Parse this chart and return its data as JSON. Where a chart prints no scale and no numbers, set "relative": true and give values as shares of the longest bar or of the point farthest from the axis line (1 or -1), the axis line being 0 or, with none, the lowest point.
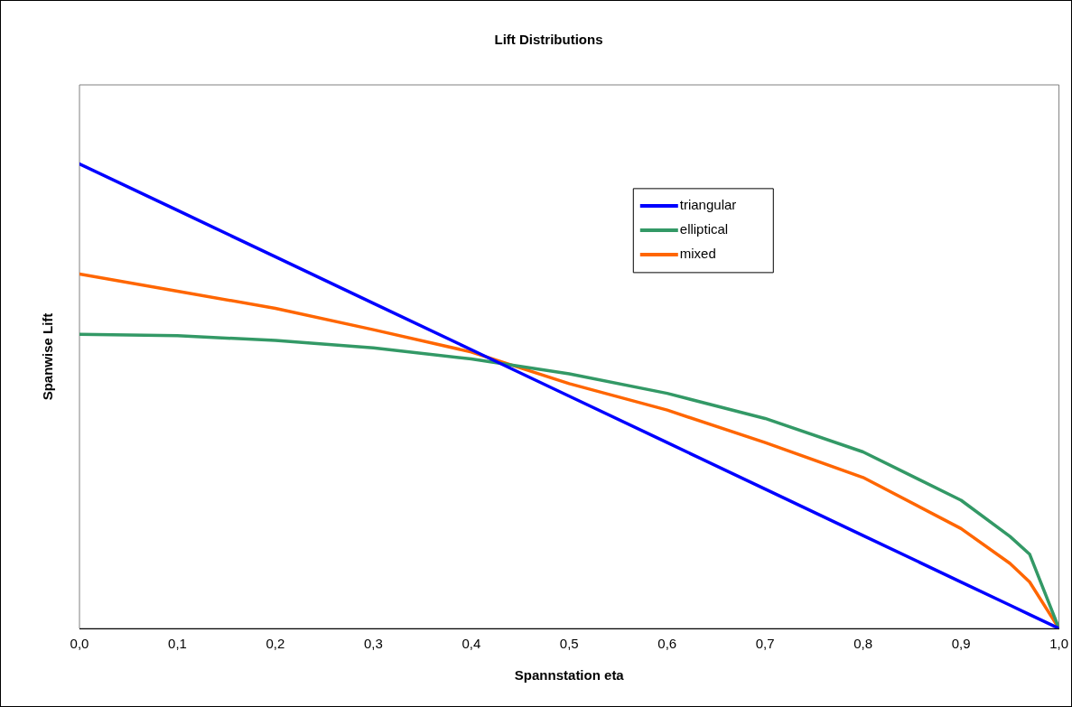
{
  "chart_data": {
    "type": "line",
    "title": "Lift Distributions",
    "xlabel": "Spannstation eta",
    "ylabel": "Spanwise Lift",
    "relative": true,
    "grid": false,
    "legend": "top right",
    "marker": "none",
    "line_style": "solid",
    "xlim": [
      0,
      1
    ],
    "xticks": [
      {
        "value": 0,
        "label": "0,0"
      },
      {
        "value": 0.1,
        "label": "0,1"
      },
      {
        "value": 0.2,
        "label": "0,2"
      },
      {
        "value": 0.3,
        "label": "0,3"
      },
      {
        "value": 0.4,
        "label": "0,4"
      },
      {
        "value": 0.5,
        "label": "0,5"
      },
      {
        "value": 0.6,
        "label": "0,6"
      },
      {
        "value": 0.7,
        "label": "0,7"
      },
      {
        "value": 0.8,
        "label": "0,8"
      },
      {
        "value": 0.9,
        "label": "0,9"
      },
      {
        "value": 1,
        "label": "1,0"
      }
    ],
    "x": [
      0,
      0.1,
      0.2,
      0.3,
      0.4,
      0.5,
      0.6,
      0.7,
      0.8,
      0.9,
      0.95,
      0.97,
      1
    ],
    "series": [
      {
        "name": "triangular",
        "color": "#0000ff",
        "values": [
          1,
          0.9,
          0.8,
          0.7,
          0.6,
          0.5,
          0.4,
          0.3,
          0.2,
          0.1,
          0.05,
          0.03,
          0
        ]
      },
      {
        "name": "elliptical",
        "color": "#339966",
        "values": [
          0.633,
          0.63,
          0.62,
          0.604,
          0.58,
          0.548,
          0.506,
          0.452,
          0.38,
          0.276,
          0.198,
          0.16,
          0
        ]
      },
      {
        "name": "mixed",
        "color": "#ff6600",
        "values": [
          0.763,
          0.726,
          0.689,
          0.643,
          0.595,
          0.527,
          0.47,
          0.4,
          0.325,
          0.215,
          0.14,
          0.1,
          0
        ]
      }
    ]
  }
}
